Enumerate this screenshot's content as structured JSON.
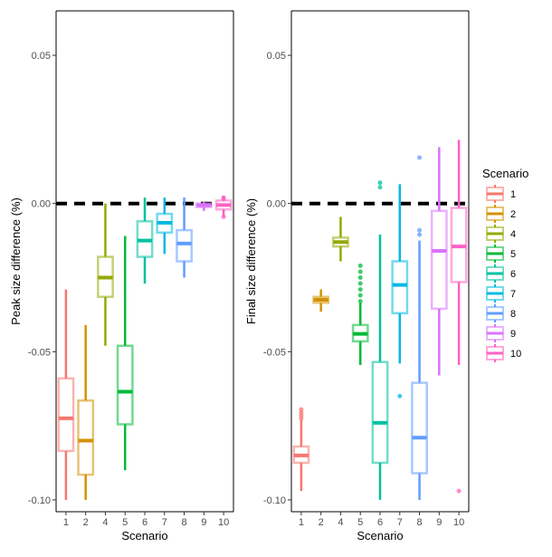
{
  "chart_data": [
    {
      "type": "boxplot",
      "panel": "left",
      "xlabel": "Scenario",
      "ylabel": "Peak size difference (%)",
      "ylim": [
        -0.104,
        0.065
      ],
      "yticks": [
        {
          "value": 0.05,
          "label": "0.05"
        },
        {
          "value": 0.0,
          "label": "0.00"
        },
        {
          "value": -0.05,
          "label": "-0.05"
        },
        {
          "value": -0.1,
          "label": "-0.10"
        }
      ],
      "reference_line": 0.0,
      "categories": [
        "1",
        "2",
        "4",
        "5",
        "6",
        "7",
        "8",
        "9",
        "10"
      ],
      "series": [
        {
          "name": "1",
          "whisker_low": -0.1,
          "q1": -0.0835,
          "median": -0.0725,
          "q3": -0.059,
          "whisker_high": -0.029,
          "outliers": []
        },
        {
          "name": "2",
          "whisker_low": -0.1,
          "q1": -0.0915,
          "median": -0.08,
          "q3": -0.0665,
          "whisker_high": -0.041,
          "outliers": []
        },
        {
          "name": "4",
          "whisker_low": -0.048,
          "q1": -0.0315,
          "median": -0.025,
          "q3": -0.018,
          "whisker_high": 0.0,
          "outliers": []
        },
        {
          "name": "5",
          "whisker_low": -0.09,
          "q1": -0.0745,
          "median": -0.0635,
          "q3": -0.048,
          "whisker_high": -0.011,
          "outliers": []
        },
        {
          "name": "6",
          "whisker_low": -0.027,
          "q1": -0.018,
          "median": -0.0125,
          "q3": -0.006,
          "whisker_high": 0.002,
          "outliers": []
        },
        {
          "name": "7",
          "whisker_low": -0.017,
          "q1": -0.0098,
          "median": -0.0065,
          "q3": -0.0035,
          "whisker_high": 0.002,
          "outliers": []
        },
        {
          "name": "8",
          "whisker_low": -0.025,
          "q1": -0.0195,
          "median": -0.0135,
          "q3": -0.009,
          "whisker_high": 0.002,
          "outliers": []
        },
        {
          "name": "9",
          "whisker_low": -0.0025,
          "q1": -0.0012,
          "median": -0.0006,
          "q3": 0.0,
          "whisker_high": 0.0005,
          "outliers": []
        },
        {
          "name": "10",
          "whisker_low": -0.0045,
          "q1": -0.002,
          "median": -0.0005,
          "q3": 0.001,
          "whisker_high": 0.0025,
          "outliers": [
            0.002,
            0.0015,
            -0.0045
          ]
        }
      ]
    },
    {
      "type": "boxplot",
      "panel": "right",
      "xlabel": "Scenario",
      "ylabel": "Final size difference (%)",
      "ylim": [
        -0.104,
        0.065
      ],
      "yticks": [
        {
          "value": 0.05,
          "label": "0.05"
        },
        {
          "value": 0.0,
          "label": "0.00"
        },
        {
          "value": -0.05,
          "label": "-0.05"
        },
        {
          "value": -0.1,
          "label": "-0.10"
        }
      ],
      "reference_line": 0.0,
      "categories": [
        "1",
        "2",
        "4",
        "5",
        "6",
        "7",
        "8",
        "9",
        "10"
      ],
      "series": [
        {
          "name": "1",
          "whisker_low": -0.097,
          "q1": -0.0875,
          "median": -0.085,
          "q3": -0.082,
          "whisker_high": -0.073,
          "outliers": [
            -0.0725,
            -0.0715,
            -0.0705,
            -0.0695
          ]
        },
        {
          "name": "2",
          "whisker_low": -0.0365,
          "q1": -0.0335,
          "median": -0.0325,
          "q3": -0.0315,
          "whisker_high": -0.029,
          "outliers": []
        },
        {
          "name": "4",
          "whisker_low": -0.0195,
          "q1": -0.0145,
          "median": -0.013,
          "q3": -0.0115,
          "whisker_high": -0.0045,
          "outliers": []
        },
        {
          "name": "5",
          "whisker_low": -0.0545,
          "q1": -0.0465,
          "median": -0.044,
          "q3": -0.041,
          "whisker_high": -0.0335,
          "outliers": [
            -0.021,
            -0.023,
            -0.025,
            -0.027,
            -0.029,
            -0.031,
            -0.033
          ]
        },
        {
          "name": "6",
          "whisker_low": -0.1,
          "q1": -0.0875,
          "median": -0.074,
          "q3": -0.0535,
          "whisker_high": -0.0105,
          "outliers": [
            0.007,
            0.0055
          ]
        },
        {
          "name": "7",
          "whisker_low": -0.054,
          "q1": -0.037,
          "median": -0.0275,
          "q3": -0.0195,
          "whisker_high": 0.0065,
          "outliers": [
            -0.065
          ]
        },
        {
          "name": "8",
          "whisker_low": -0.1,
          "q1": -0.091,
          "median": -0.079,
          "q3": -0.0605,
          "whisker_high": -0.0125,
          "outliers": [
            0.0155,
            -0.009,
            -0.0105
          ]
        },
        {
          "name": "9",
          "whisker_low": -0.058,
          "q1": -0.0355,
          "median": -0.016,
          "q3": -0.0025,
          "whisker_high": 0.019,
          "outliers": []
        },
        {
          "name": "10",
          "whisker_low": -0.0545,
          "q1": -0.0265,
          "median": -0.0145,
          "q3": -0.0015,
          "whisker_high": 0.0215,
          "outliers": [
            -0.097
          ]
        }
      ]
    }
  ],
  "legend": {
    "title": "Scenario",
    "entries": [
      "1",
      "2",
      "4",
      "5",
      "6",
      "7",
      "8",
      "9",
      "10"
    ]
  },
  "colors": {
    "1": "#F8766D",
    "2": "#D39200",
    "4": "#93AA00",
    "5": "#00BA38",
    "6": "#00C19F",
    "7": "#00B9E3",
    "8": "#619CFF",
    "9": "#DB72FB",
    "10": "#FF61C3",
    "reference_line": "#000000",
    "axis": "#000000",
    "tick_text": "#4d4d4d"
  }
}
